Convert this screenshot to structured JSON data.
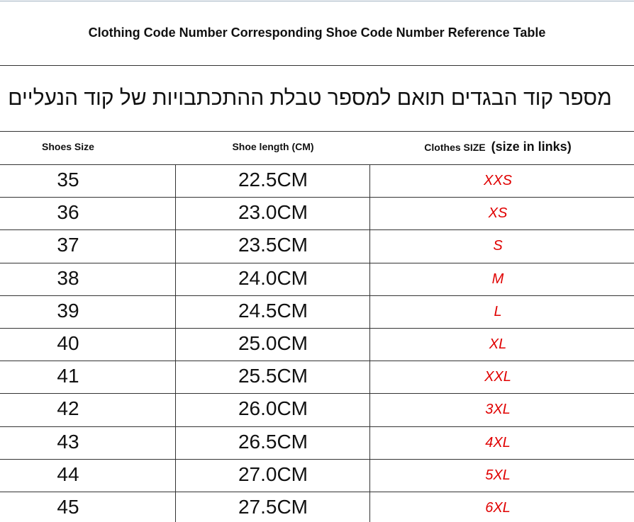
{
  "header": {
    "title": "Clothing Code Number Corresponding Shoe Code Number Reference Table",
    "subtitle": "מספר קוד הבגדים תואם למספר טבלת ההתכתבויות של קוד הנעליים"
  },
  "table": {
    "columns": [
      "Shoes Size",
      "Shoe length (CM)",
      {
        "main": "Clothes SIZE",
        "note": "(size in links)"
      }
    ],
    "rows": [
      [
        "35",
        "22.5CM",
        "XXS"
      ],
      [
        "36",
        "23.0CM",
        "XS"
      ],
      [
        "37",
        "23.5CM",
        "S"
      ],
      [
        "38",
        "24.0CM",
        "M"
      ],
      [
        "39",
        "24.5CM",
        "L"
      ],
      [
        "40",
        "25.0CM",
        "XL"
      ],
      [
        "41",
        "25.5CM",
        "XXL"
      ],
      [
        "42",
        "26.0CM",
        "3XL"
      ],
      [
        "43",
        "26.5CM",
        "4XL"
      ],
      [
        "44",
        "27.0CM",
        "5XL"
      ],
      [
        "45",
        "27.5CM",
        "6XL"
      ]
    ]
  }
}
